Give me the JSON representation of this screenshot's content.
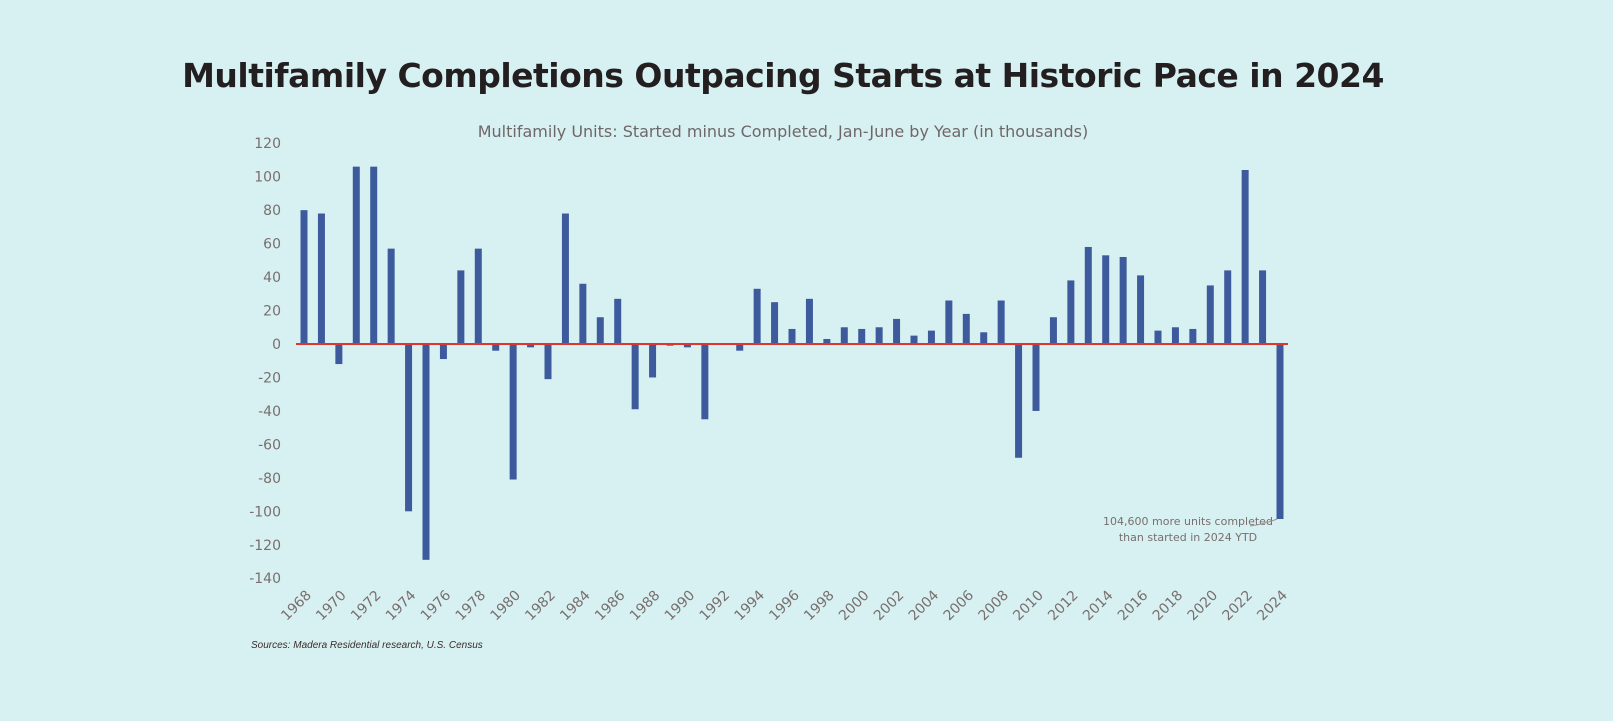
{
  "chart_data": {
    "type": "bar",
    "title": "Multifamily Completions Outpacing Starts at Historic Pace in 2024",
    "subtitle": "Multifamily Units: Started minus Completed, Jan-June by Year (in thousands)",
    "source": "Sources: Madera Residential research, U.S. Census",
    "annotation": [
      "104,600 more units completed",
      "than started in 2024 YTD"
    ],
    "ylim": [
      -140,
      120
    ],
    "yticks": [
      120,
      100,
      80,
      60,
      40,
      20,
      0,
      -20,
      -40,
      -60,
      -80,
      -100,
      -120,
      -140
    ],
    "categories": [
      1968,
      1969,
      1970,
      1971,
      1972,
      1973,
      1974,
      1975,
      1976,
      1977,
      1978,
      1979,
      1980,
      1981,
      1982,
      1983,
      1984,
      1985,
      1986,
      1987,
      1988,
      1989,
      1990,
      1991,
      1992,
      1993,
      1994,
      1995,
      1996,
      1997,
      1998,
      1999,
      2000,
      2001,
      2002,
      2003,
      2004,
      2005,
      2006,
      2007,
      2008,
      2009,
      2010,
      2011,
      2012,
      2013,
      2014,
      2015,
      2016,
      2017,
      2018,
      2019,
      2020,
      2021,
      2022,
      2023,
      2024
    ],
    "xtick_labels": [
      "1968",
      "1970",
      "1972",
      "1974",
      "1976",
      "1978",
      "1980",
      "1982",
      "1984",
      "1986",
      "1988",
      "1990",
      "1992",
      "1994",
      "1996",
      "1998",
      "2000",
      "2002",
      "2004",
      "2006",
      "2008",
      "2010",
      "2012",
      "2014",
      "2016",
      "2018",
      "2020",
      "2022",
      "2024"
    ],
    "values": [
      80,
      78,
      -12,
      106,
      106,
      57,
      -100,
      -129,
      -9,
      44,
      57,
      -4,
      -81,
      -2,
      -21,
      78,
      36,
      16,
      27,
      -39,
      -20,
      -1,
      -2,
      -45,
      0,
      -4,
      33,
      25,
      9,
      27,
      3,
      10,
      9,
      10,
      15,
      5,
      8,
      26,
      18,
      7,
      26,
      -68,
      -40,
      16,
      38,
      58,
      53,
      52,
      41,
      8,
      10,
      9,
      35,
      44,
      104,
      44,
      -104.6
    ],
    "grid": false,
    "colors": {
      "bar": "#3d5a9c",
      "zero_line": "#e0342f",
      "background": "#d7f1f2"
    }
  }
}
